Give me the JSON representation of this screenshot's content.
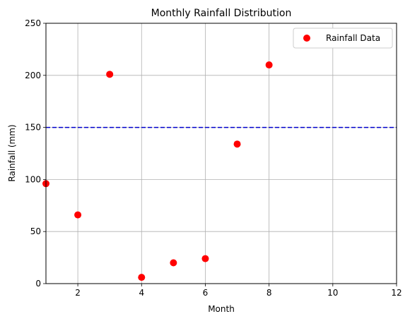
{
  "chart_data": {
    "type": "scatter",
    "title": "Monthly Rainfall Distribution",
    "xlabel": "Month",
    "ylabel": "Rainfall (mm)",
    "xlim": [
      1,
      12
    ],
    "ylim": [
      0,
      250
    ],
    "xticks": [
      2,
      4,
      6,
      8,
      10,
      12
    ],
    "yticks": [
      0,
      50,
      100,
      150,
      200,
      250
    ],
    "grid": true,
    "legend_position": "top-right",
    "series": [
      {
        "name": "Rainfall Data",
        "color": "#ff0000",
        "x": [
          1,
          2,
          3,
          4,
          5,
          6,
          7,
          8
        ],
        "y": [
          96,
          66,
          201,
          6,
          20,
          24,
          134,
          210
        ]
      }
    ],
    "reference_line": {
      "y": 150,
      "color": "#0000cc",
      "style": "dashed"
    }
  }
}
